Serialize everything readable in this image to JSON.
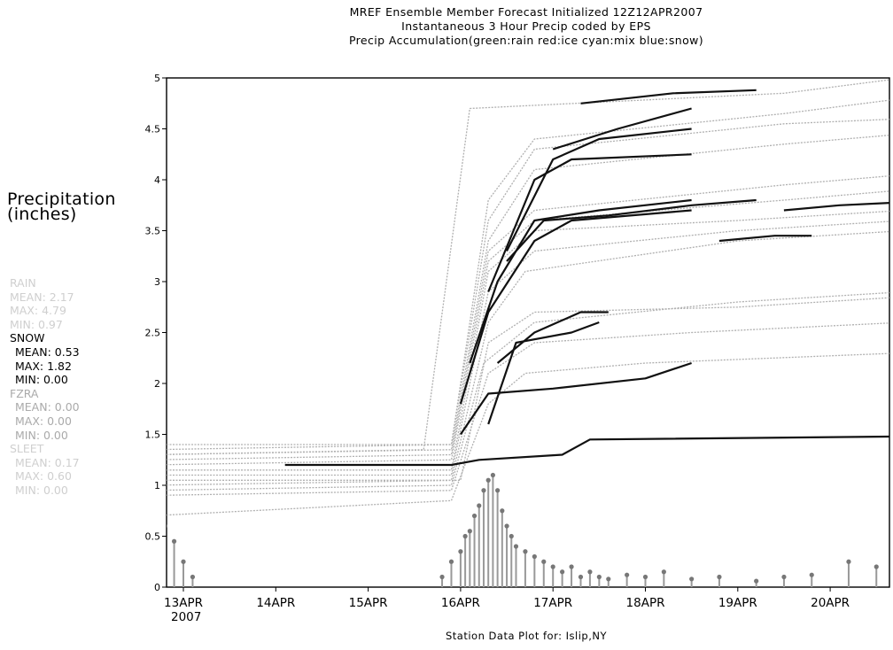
{
  "titles": [
    "MREF Ensemble Member Forecast Initialized 12Z12APR2007",
    "Instantaneous 3 Hour Precip coded by EPS",
    "Precip Accumulation(green:rain red:ice cyan:mix blue:snow)"
  ],
  "ylabel": [
    "Precipitation",
    "(inches)"
  ],
  "footer": "Station Data Plot for: Islip,NY",
  "stats": {
    "rain_faint": [
      "RAIN",
      "MEAN: 2.17",
      "MAX: 4.79",
      "MIN: 0.97"
    ],
    "snow": [
      "SNOW",
      "MEAN: 0.53",
      "MAX: 1.82",
      "MIN: 0.00"
    ],
    "fzra": [
      "FZRA",
      "MEAN: 0.00",
      "MAX: 0.00",
      "MIN: 0.00"
    ],
    "sleet_faint": [
      "SLEET",
      "MEAN: 0.17",
      "MAX: 0.60",
      "MIN: 0.00"
    ]
  },
  "chart_data": {
    "type": "line",
    "title": "MREF Ensemble Member Forecast Initialized 12Z12APR2007",
    "ylabel": "Precipitation (inches)",
    "xlabel": "Station Data Plot for: Islip,NY",
    "x_unit": "days since 13APR 00Z",
    "xlim": [
      -0.35,
      7.8
    ],
    "ylim": [
      0,
      5
    ],
    "yticks": [
      0,
      0.5,
      1,
      1.5,
      2,
      2.5,
      3,
      3.5,
      4,
      4.5,
      5
    ],
    "ytick_labels": [
      "0",
      "0.5",
      "1",
      "1.5",
      "2",
      "2.5",
      "3",
      "3.5",
      "4",
      "4.5",
      "5"
    ],
    "xticks": [
      0,
      1,
      2,
      3,
      4,
      5,
      6,
      7
    ],
    "xtick_labels": [
      "13APR",
      "14APR",
      "15APR",
      "16APR",
      "17APR",
      "18APR",
      "19APR",
      "20APR"
    ],
    "x_year_label": "2007",
    "colors": {
      "rain": "#b0b0b0",
      "snow": "#111111",
      "bars": "#999999"
    },
    "series": [
      {
        "precip": "rain",
        "points": [
          [
            -0.35,
            0.7
          ],
          [
            2.9,
            0.85
          ],
          [
            3.3,
            1.8
          ],
          [
            3.7,
            2.1
          ],
          [
            5.0,
            2.2
          ],
          [
            7.8,
            2.3
          ]
        ]
      },
      {
        "precip": "rain",
        "points": [
          [
            -0.35,
            0.9
          ],
          [
            2.9,
            0.95
          ],
          [
            3.3,
            2.1
          ],
          [
            3.8,
            2.4
          ],
          [
            5.5,
            2.5
          ],
          [
            7.8,
            2.6
          ]
        ]
      },
      {
        "precip": "rain",
        "points": [
          [
            -0.35,
            0.95
          ],
          [
            2.9,
            1.0
          ],
          [
            3.25,
            2.2
          ],
          [
            3.8,
            2.6
          ],
          [
            6.0,
            2.8
          ],
          [
            7.8,
            2.9
          ]
        ]
      },
      {
        "precip": "rain",
        "points": [
          [
            -0.35,
            1.0
          ],
          [
            3.0,
            1.05
          ],
          [
            3.3,
            2.4
          ],
          [
            3.8,
            2.7
          ],
          [
            6.0,
            2.75
          ],
          [
            7.8,
            2.85
          ]
        ]
      },
      {
        "precip": "rain",
        "points": [
          [
            -0.35,
            1.05
          ],
          [
            2.9,
            1.05
          ],
          [
            3.3,
            2.6
          ],
          [
            3.7,
            3.1
          ],
          [
            6.0,
            3.4
          ],
          [
            7.8,
            3.5
          ]
        ]
      },
      {
        "precip": "rain",
        "points": [
          [
            -0.35,
            1.1
          ],
          [
            2.9,
            1.1
          ],
          [
            3.3,
            2.9
          ],
          [
            3.8,
            3.3
          ],
          [
            6.0,
            3.5
          ],
          [
            7.8,
            3.6
          ]
        ]
      },
      {
        "precip": "rain",
        "points": [
          [
            -0.35,
            1.15
          ],
          [
            2.9,
            1.15
          ],
          [
            3.3,
            3.1
          ],
          [
            3.8,
            3.5
          ],
          [
            6.0,
            3.6
          ],
          [
            7.8,
            3.7
          ]
        ]
      },
      {
        "precip": "rain",
        "points": [
          [
            -0.35,
            1.2
          ],
          [
            2.9,
            1.25
          ],
          [
            3.3,
            3.2
          ],
          [
            3.8,
            3.6
          ],
          [
            6.5,
            3.8
          ],
          [
            7.8,
            3.9
          ]
        ]
      },
      {
        "precip": "rain",
        "points": [
          [
            -0.35,
            1.25
          ],
          [
            2.9,
            1.3
          ],
          [
            3.3,
            3.3
          ],
          [
            3.8,
            3.7
          ],
          [
            6.5,
            3.95
          ],
          [
            7.8,
            4.05
          ]
        ]
      },
      {
        "precip": "rain",
        "points": [
          [
            -0.35,
            1.3
          ],
          [
            2.9,
            1.35
          ],
          [
            3.3,
            3.4
          ],
          [
            3.8,
            4.1
          ],
          [
            6.5,
            4.35
          ],
          [
            7.8,
            4.45
          ]
        ]
      },
      {
        "precip": "rain",
        "points": [
          [
            -0.35,
            1.35
          ],
          [
            2.9,
            1.4
          ],
          [
            3.3,
            3.6
          ],
          [
            3.8,
            4.3
          ],
          [
            6.5,
            4.55
          ],
          [
            7.8,
            4.6
          ]
        ]
      },
      {
        "precip": "rain",
        "points": [
          [
            -0.35,
            1.4
          ],
          [
            2.9,
            1.4
          ],
          [
            3.3,
            3.8
          ],
          [
            3.8,
            4.4
          ],
          [
            6.5,
            4.65
          ],
          [
            7.8,
            4.8
          ]
        ]
      },
      {
        "precip": "rain",
        "points": [
          [
            -0.35,
            1.3
          ],
          [
            2.6,
            1.35
          ],
          [
            3.1,
            4.7
          ],
          [
            6.5,
            4.85
          ],
          [
            7.8,
            5.0
          ]
        ]
      },
      {
        "precip": "snow",
        "points": [
          [
            1.1,
            1.2
          ],
          [
            2.9,
            1.2
          ],
          [
            3.2,
            1.25
          ],
          [
            4.1,
            1.3
          ],
          [
            4.4,
            1.45
          ],
          [
            7.8,
            1.48
          ]
        ]
      },
      {
        "precip": "snow",
        "points": [
          [
            3.0,
            1.5
          ],
          [
            3.3,
            1.9
          ],
          [
            4.0,
            1.95
          ],
          [
            5.0,
            2.05
          ],
          [
            5.5,
            2.2
          ]
        ]
      },
      {
        "precip": "snow",
        "points": [
          [
            3.3,
            1.6
          ],
          [
            3.6,
            2.4
          ],
          [
            4.2,
            2.5
          ],
          [
            4.5,
            2.6
          ]
        ]
      },
      {
        "precip": "snow",
        "points": [
          [
            3.4,
            2.2
          ],
          [
            3.8,
            2.5
          ],
          [
            4.3,
            2.7
          ],
          [
            4.6,
            2.7
          ]
        ]
      },
      {
        "precip": "snow",
        "points": [
          [
            3.0,
            1.8
          ],
          [
            3.3,
            2.7
          ],
          [
            3.8,
            3.4
          ],
          [
            4.2,
            3.6
          ],
          [
            5.5,
            3.7
          ]
        ]
      },
      {
        "precip": "snow",
        "points": [
          [
            3.1,
            2.2
          ],
          [
            3.4,
            3.0
          ],
          [
            3.8,
            3.6
          ],
          [
            4.5,
            3.7
          ],
          [
            5.5,
            3.8
          ]
        ]
      },
      {
        "precip": "snow",
        "points": [
          [
            3.5,
            3.2
          ],
          [
            3.9,
            3.6
          ],
          [
            4.6,
            3.65
          ],
          [
            5.5,
            3.75
          ],
          [
            6.2,
            3.8
          ]
        ]
      },
      {
        "precip": "snow",
        "points": [
          [
            3.3,
            2.9
          ],
          [
            3.8,
            4.0
          ],
          [
            4.2,
            4.2
          ],
          [
            5.5,
            4.25
          ]
        ]
      },
      {
        "precip": "snow",
        "points": [
          [
            3.5,
            3.3
          ],
          [
            4.0,
            4.2
          ],
          [
            4.5,
            4.4
          ],
          [
            5.5,
            4.5
          ]
        ]
      },
      {
        "precip": "snow",
        "points": [
          [
            4.0,
            4.3
          ],
          [
            4.7,
            4.5
          ],
          [
            5.5,
            4.7
          ]
        ]
      },
      {
        "precip": "snow",
        "points": [
          [
            4.3,
            4.75
          ],
          [
            5.3,
            4.85
          ],
          [
            6.2,
            4.88
          ]
        ]
      },
      {
        "precip": "snow",
        "points": [
          [
            5.8,
            3.4
          ],
          [
            6.4,
            3.45
          ],
          [
            6.8,
            3.45
          ]
        ]
      },
      {
        "precip": "snow",
        "points": [
          [
            6.5,
            3.7
          ],
          [
            7.1,
            3.75
          ],
          [
            7.8,
            3.78
          ]
        ]
      }
    ],
    "bars": {
      "x": [
        -0.3,
        -0.2,
        -0.1,
        0.0,
        0.1,
        2.8,
        2.9,
        3.0,
        3.05,
        3.1,
        3.15,
        3.2,
        3.25,
        3.3,
        3.35,
        3.4,
        3.45,
        3.5,
        3.55,
        3.6,
        3.7,
        3.8,
        3.9,
        4.0,
        4.1,
        4.2,
        4.3,
        4.4,
        4.5,
        4.6,
        4.8,
        5.0,
        5.2,
        5.5,
        5.8,
        6.2,
        6.5,
        6.8,
        7.2,
        7.5,
        7.7
      ],
      "y": [
        0.75,
        0.6,
        0.45,
        0.25,
        0.1,
        0.1,
        0.25,
        0.35,
        0.5,
        0.55,
        0.7,
        0.8,
        0.95,
        1.05,
        1.1,
        0.95,
        0.75,
        0.6,
        0.5,
        0.4,
        0.35,
        0.3,
        0.25,
        0.2,
        0.15,
        0.2,
        0.1,
        0.15,
        0.1,
        0.08,
        0.12,
        0.1,
        0.15,
        0.08,
        0.1,
        0.06,
        0.1,
        0.12,
        0.25,
        0.2,
        0.28
      ]
    }
  }
}
